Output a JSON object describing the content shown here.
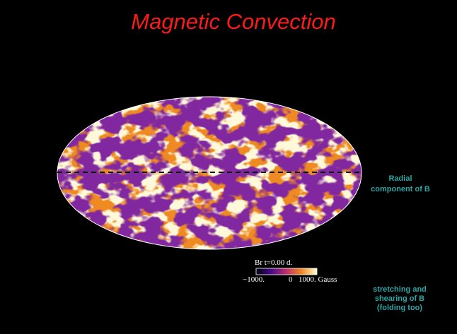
{
  "slide": {
    "title": "Magnetic Convection",
    "colorbar": {
      "caption": "Br t=0.00 d.",
      "min_label": "−1000.",
      "mid_label": "0",
      "max_label": "1000. Gauss"
    },
    "annotations": {
      "radial": [
        "Radial",
        "component of B"
      ],
      "stretching": [
        "stretching and",
        "shearing of B",
        "(folding too)"
      ]
    }
  }
}
